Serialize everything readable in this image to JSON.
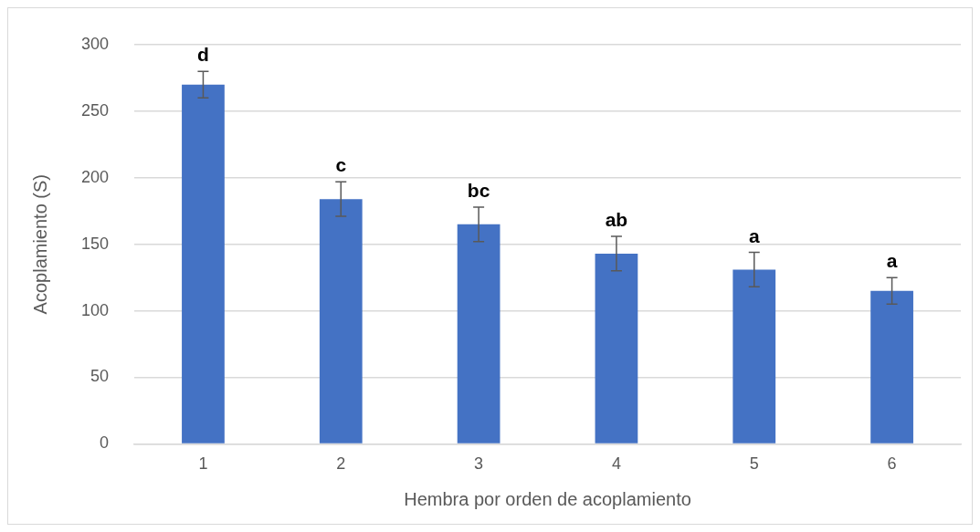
{
  "chart_data": {
    "type": "bar",
    "xlabel": "Hembra por orden de acoplamiento",
    "ylabel": "Acoplamiento (S)",
    "categories": [
      "1",
      "2",
      "3",
      "4",
      "5",
      "6"
    ],
    "values": [
      270,
      184,
      165,
      143,
      131,
      115
    ],
    "errors": [
      10,
      13,
      13,
      13,
      13,
      10
    ],
    "color": "#4472c4",
    "ylim": [
      0,
      300
    ],
    "yticks": [
      0,
      50,
      100,
      150,
      200,
      250,
      300
    ],
    "grid": "y",
    "legend": false,
    "annotations": [
      {
        "text": "d",
        "x": "1",
        "y": 280
      },
      {
        "text": "c",
        "x": "2",
        "y": 197
      },
      {
        "text": "bc",
        "x": "3",
        "y": 178
      },
      {
        "text": "ab",
        "x": "4",
        "y": 156
      },
      {
        "text": "a",
        "x": "5",
        "y": 144
      },
      {
        "text": "a",
        "x": "6",
        "y": 125
      }
    ]
  }
}
